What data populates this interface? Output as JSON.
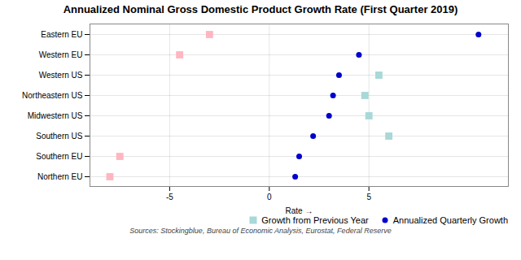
{
  "chart_data": {
    "type": "dot",
    "title": "Annualized Nominal Gross Domestic Product Growth Rate (First Quarter 2019)",
    "xlabel": "Rate",
    "source": "Sources: Stockingblue, Bureau of Economic Analysis, Eurostat, Federal Reserve",
    "categories": [
      "Eastern EU",
      "Western EU",
      "Western US",
      "Northeastern US",
      "Midwestern US",
      "Southern US",
      "Southern EU",
      "Northern EU"
    ],
    "series": [
      {
        "color": "#ffb6c1",
        "marker": "square",
        "values": [
          -3.0,
          -4.5,
          null,
          null,
          null,
          null,
          -7.5,
          -8.0
        ]
      },
      {
        "name": "Growth from Previous Year",
        "color": "#a8d8d8",
        "marker": "square",
        "values": [
          null,
          null,
          5.5,
          4.8,
          5.0,
          6.0,
          null,
          null
        ]
      },
      {
        "name": "Annualized Quarterly Growth",
        "color": "#0000cc",
        "marker": "circle",
        "values": [
          10.5,
          4.5,
          3.5,
          3.2,
          3.0,
          2.2,
          1.5,
          1.3
        ]
      }
    ],
    "orientation": "horizontal",
    "xlim": [
      -9,
      12
    ],
    "xticks": [
      -5,
      0,
      5
    ],
    "grid": true,
    "legend": "lower right"
  }
}
